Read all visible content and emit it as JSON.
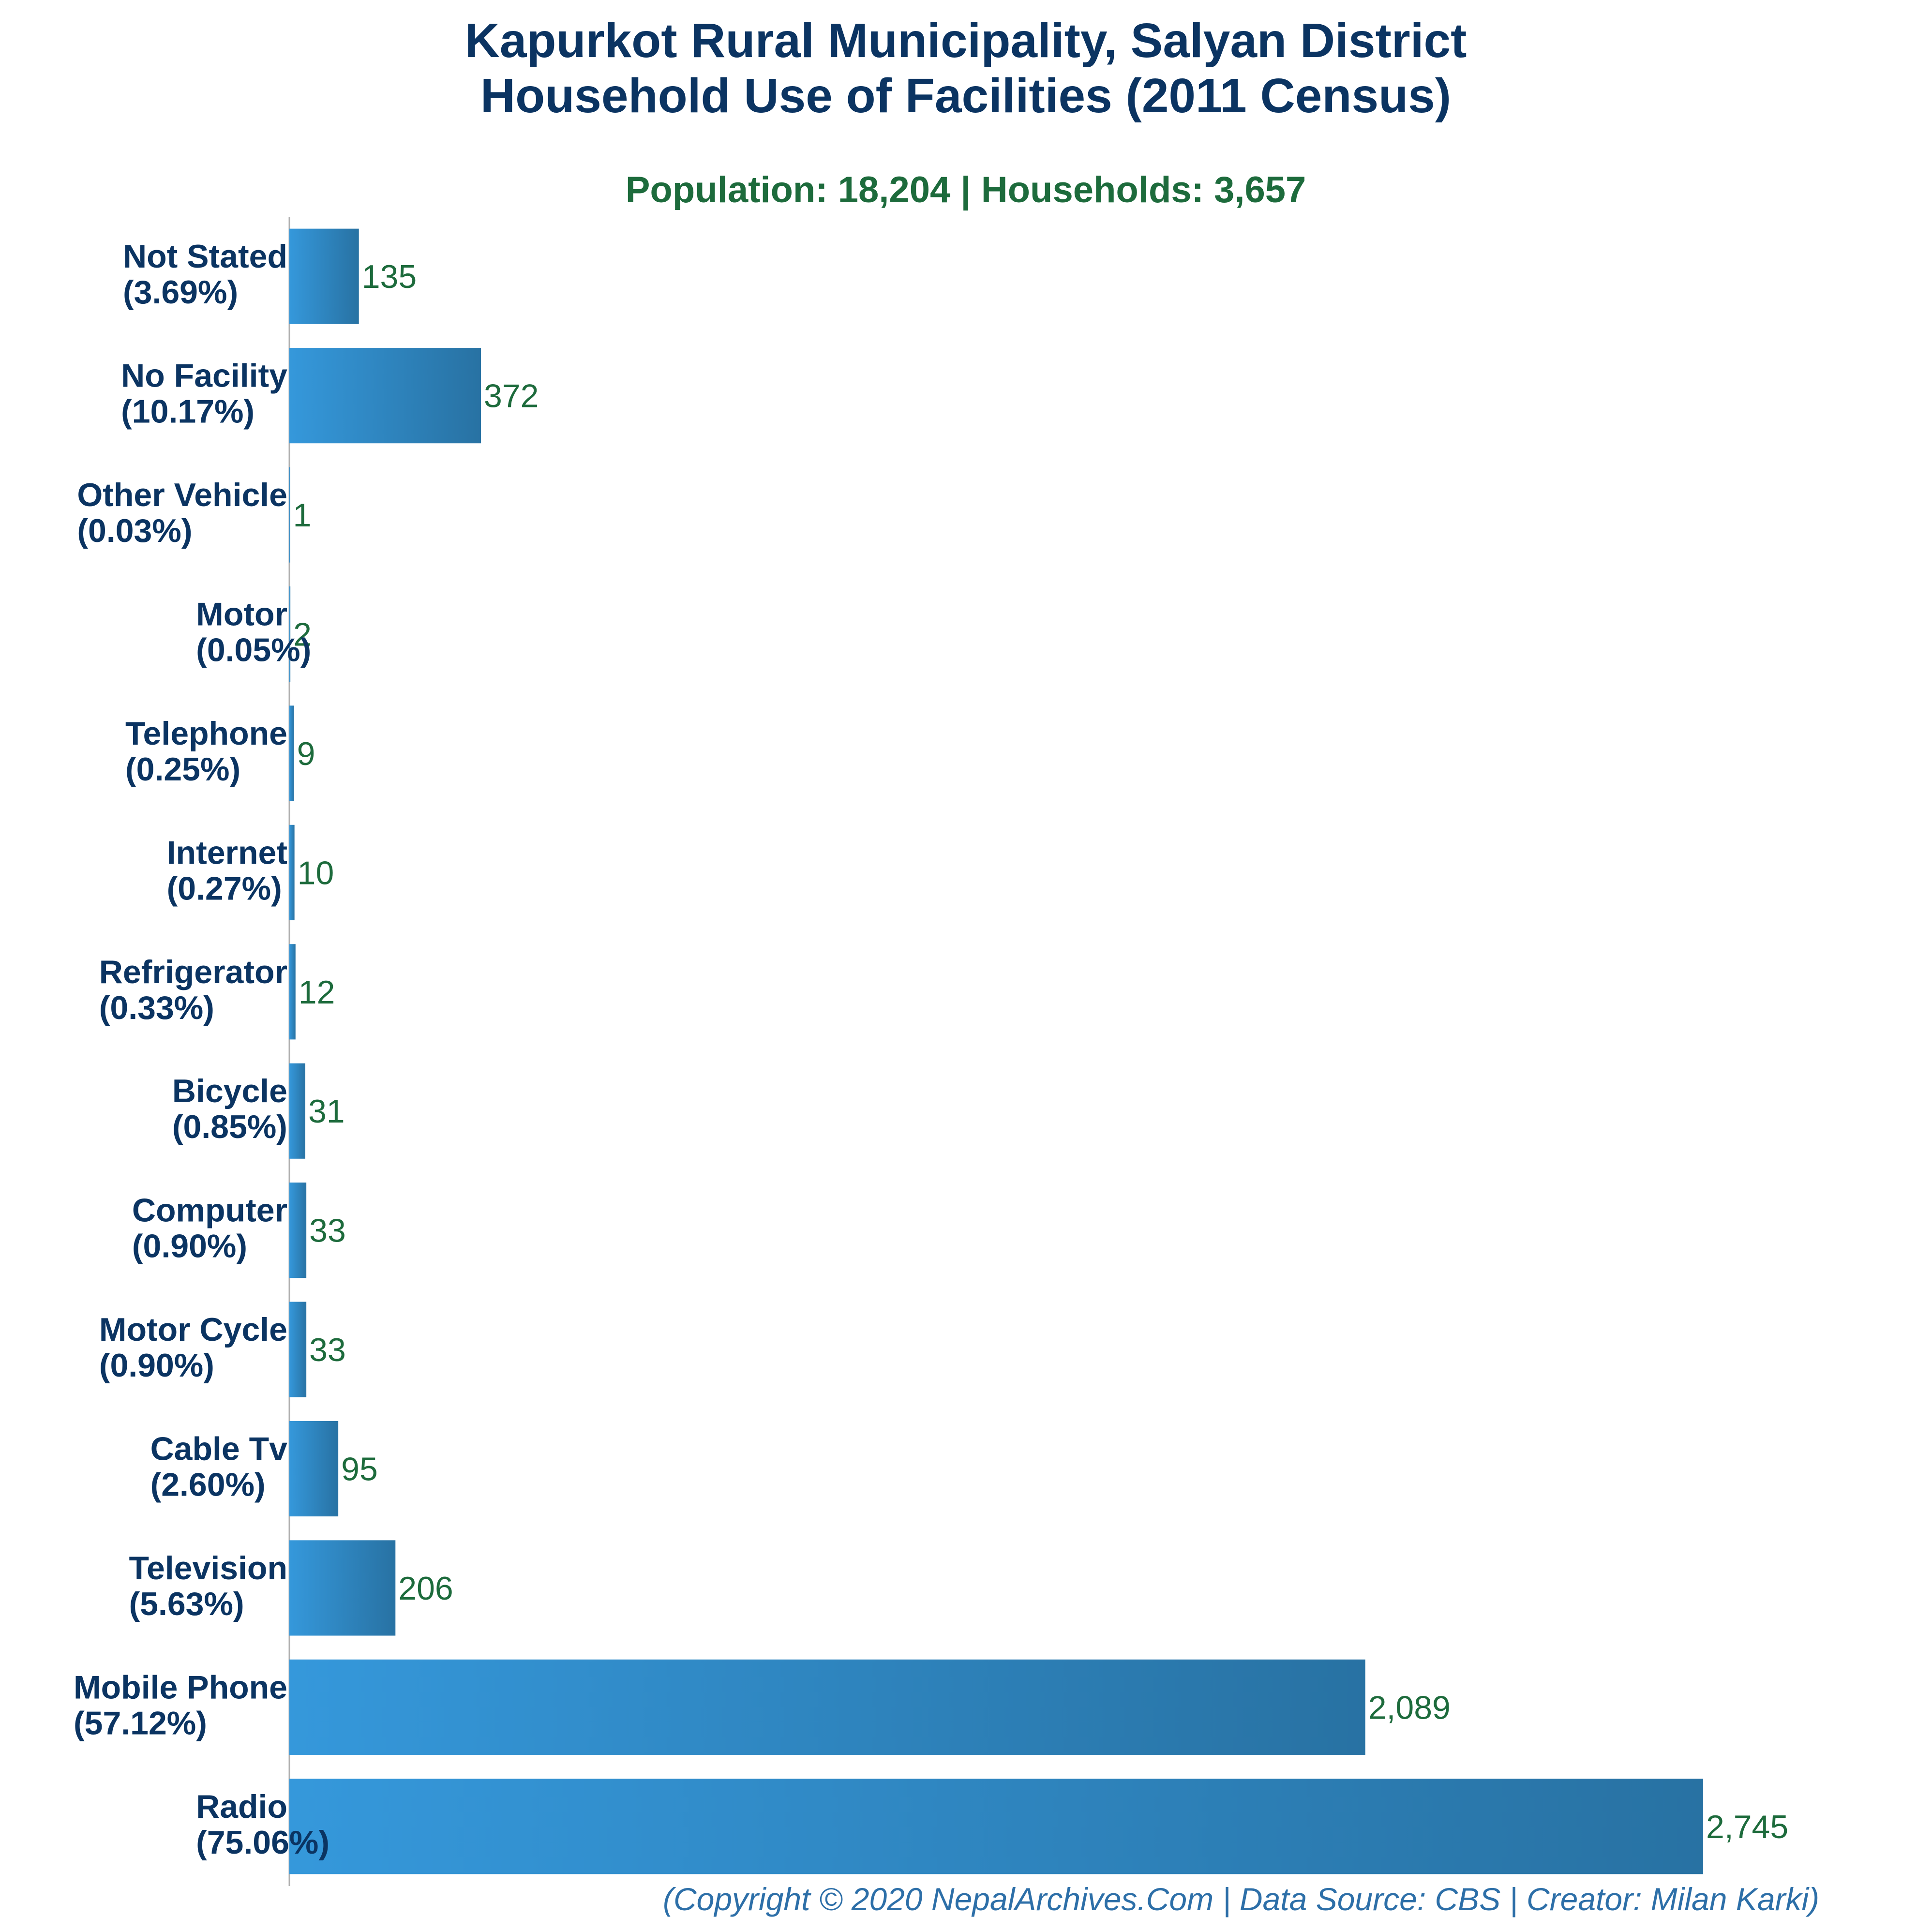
{
  "chart_data": {
    "type": "bar",
    "orientation": "horizontal",
    "title_line1": "Kapurkot Rural Municipality, Salyan District",
    "title_line2": "Household Use of Facilities (2011 Census)",
    "subtitle": "Population: 18,204 | Households: 3,657",
    "footer": "(Copyright © 2020 NepalArchives.Com | Data Source: CBS | Creator: Milan Karki)",
    "xlim": [
      0,
      2745
    ],
    "categories": [
      {
        "name": "Not Stated",
        "pct": "(3.69%)",
        "value": 135,
        "label": "135"
      },
      {
        "name": "No Facility",
        "pct": "(10.17%)",
        "value": 372,
        "label": "372"
      },
      {
        "name": "Other Vehicle",
        "pct": "(0.03%)",
        "value": 1,
        "label": "1"
      },
      {
        "name": "Motor",
        "pct": "(0.05%)",
        "value": 2,
        "label": "2"
      },
      {
        "name": "Telephone",
        "pct": "(0.25%)",
        "value": 9,
        "label": "9"
      },
      {
        "name": "Internet",
        "pct": "(0.27%)",
        "value": 10,
        "label": "10"
      },
      {
        "name": "Refrigerator",
        "pct": "(0.33%)",
        "value": 12,
        "label": "12"
      },
      {
        "name": "Bicycle",
        "pct": "(0.85%)",
        "value": 31,
        "label": "31"
      },
      {
        "name": "Computer",
        "pct": "(0.90%)",
        "value": 33,
        "label": "33"
      },
      {
        "name": "Motor Cycle",
        "pct": "(0.90%)",
        "value": 33,
        "label": "33"
      },
      {
        "name": "Cable Tv",
        "pct": "(2.60%)",
        "value": 95,
        "label": "95"
      },
      {
        "name": "Television",
        "pct": "(5.63%)",
        "value": 206,
        "label": "206"
      },
      {
        "name": "Mobile Phone",
        "pct": "(57.12%)",
        "value": 2089,
        "label": "2,089"
      },
      {
        "name": "Radio",
        "pct": "(75.06%)",
        "value": 2745,
        "label": "2,745"
      }
    ],
    "colors": {
      "bar_start": "#3598db",
      "bar_end": "#2872a3",
      "title": "#0b3462",
      "subtitle": "#1d6b3c",
      "value": "#1d6b3c",
      "footer": "#2d6fa8",
      "axis": "#b0b0b0"
    }
  }
}
